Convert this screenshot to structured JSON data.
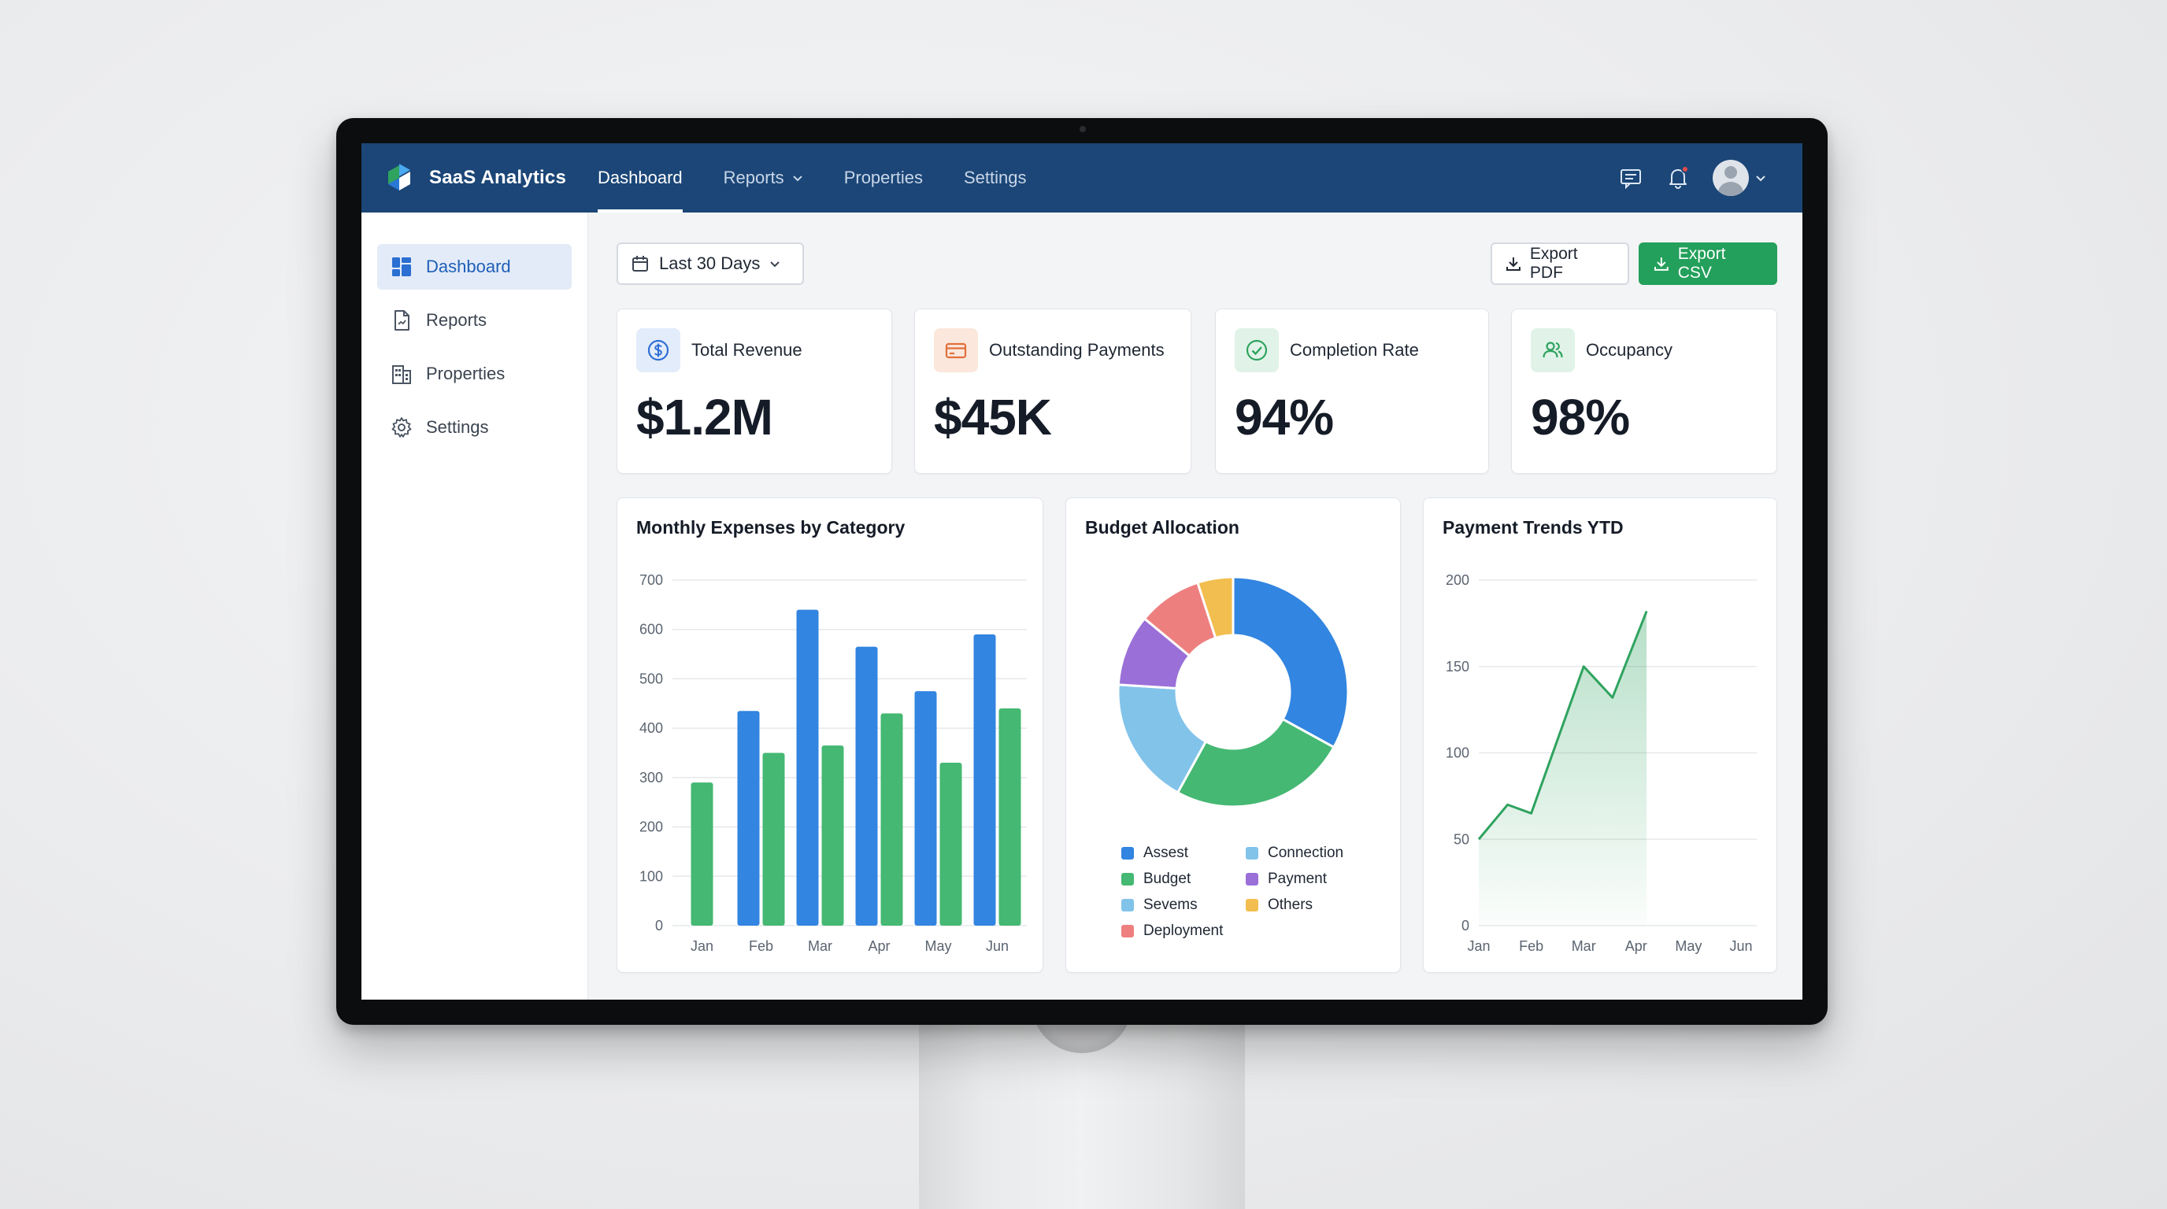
{
  "brand": {
    "name": "SaaS Analytics"
  },
  "nav": {
    "items": [
      {
        "label": "Dashboard",
        "active": true
      },
      {
        "label": "Reports",
        "dropdown": true
      },
      {
        "label": "Properties"
      },
      {
        "label": "Settings"
      }
    ]
  },
  "top_actions": {
    "icons": [
      "message-icon",
      "bell-icon",
      "avatar"
    ],
    "has_notification": true
  },
  "sidebar": {
    "items": [
      {
        "label": "Dashboard",
        "icon": "dashboard-icon",
        "active": true
      },
      {
        "label": "Reports",
        "icon": "document-icon"
      },
      {
        "label": "Properties",
        "icon": "building-icon"
      },
      {
        "label": "Settings",
        "icon": "gear-icon"
      }
    ]
  },
  "toolbar": {
    "date_range": "Last 30 Days",
    "export_pdf_label": "Export PDF",
    "export_csv_label": "Export CSV"
  },
  "kpis": [
    {
      "label": "Total Revenue",
      "value": "$1.2M",
      "icon": "dollar-icon",
      "color": "#2f6fd6",
      "bg": "#e3ecfa"
    },
    {
      "label": "Outstanding Payments",
      "value": "$45K",
      "icon": "credit-card-icon",
      "color": "#e0703a",
      "bg": "#fbe7dc"
    },
    {
      "label": "Completion Rate",
      "value": "94%",
      "icon": "check-circle-icon",
      "color": "#2fa35f",
      "bg": "#e1f3e8"
    },
    {
      "label": "Occupancy",
      "value": "98%",
      "icon": "users-icon",
      "color": "#2fa35f",
      "bg": "#e1f3e8"
    }
  ],
  "chart_data": [
    {
      "type": "bar",
      "title": "Monthly Expenses by Category",
      "categories": [
        "Jan",
        "Feb",
        "Mar",
        "Apr",
        "May",
        "Jun"
      ],
      "series": [
        {
          "values": [
            0,
            435,
            640,
            565,
            475,
            590
          ],
          "color": "#3285e0"
        },
        {
          "values": [
            290,
            350,
            365,
            430,
            330,
            440
          ],
          "color": "#45b873"
        }
      ],
      "yticks": [
        0,
        100,
        200,
        300,
        400,
        500,
        600,
        700
      ],
      "ylim": [
        0,
        700
      ],
      "grid": true
    },
    {
      "type": "pie",
      "title": "Budget Allocation",
      "donut": true,
      "slices": [
        {
          "label": "Assest",
          "value": 33,
          "color": "#3285e0"
        },
        {
          "label": "Budget",
          "value": 25,
          "color": "#45b873"
        },
        {
          "label": "Sevems",
          "value": 18,
          "color": "#82c3ea"
        },
        {
          "label": "Payment",
          "value": 10,
          "color": "#9a6fd8"
        },
        {
          "label": "Deployment",
          "value": 9,
          "color": "#ee7f7f"
        },
        {
          "label": "Others",
          "value": 5,
          "color": "#f2be4f"
        }
      ],
      "legend": [
        {
          "label": "Assest",
          "color": "#3285e0"
        },
        {
          "label": "Connection",
          "color": "#82c3ea"
        },
        {
          "label": "Budget",
          "color": "#45b873"
        },
        {
          "label": "Payment",
          "color": "#9a6fd8"
        },
        {
          "label": "Sevems",
          "color": "#82c3ea"
        },
        {
          "label": "Others",
          "color": "#f2be4f"
        },
        {
          "label": "Deployment",
          "color": "#ee7f7f"
        }
      ]
    },
    {
      "type": "area",
      "title": "Payment Trends YTD",
      "x": [
        "Jan",
        "Feb",
        "Mar",
        "Apr",
        "May",
        "Jun"
      ],
      "points": [
        {
          "x": 0,
          "y": 50
        },
        {
          "x": 0.55,
          "y": 70
        },
        {
          "x": 1.0,
          "y": 65
        },
        {
          "x": 2.0,
          "y": 150
        },
        {
          "x": 2.55,
          "y": 132
        },
        {
          "x": 3.2,
          "y": 182
        }
      ],
      "yticks": [
        0,
        50,
        100,
        150,
        200
      ],
      "ylim": [
        0,
        200
      ],
      "color": "#2fa35f",
      "grid": true
    }
  ]
}
